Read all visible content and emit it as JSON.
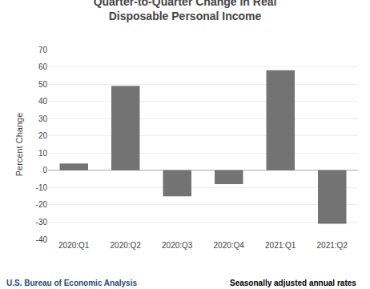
{
  "chart_data": {
    "type": "bar",
    "title": "Quarter-to-Quarter Change in Real\nDisposable Personal Income",
    "y_label": "Percent Change",
    "categories": [
      "2020:Q1",
      "2020:Q2",
      "2020:Q3",
      "2020:Q4",
      "2021:Q1",
      "2021:Q2"
    ],
    "values": [
      4.0,
      49.0,
      -15.0,
      -8.0,
      58.0,
      -31.0
    ],
    "color": "#737373",
    "ylim": [
      -40,
      70
    ],
    "yticks": [
      -40,
      -30,
      -20,
      -10,
      0,
      10,
      20,
      30,
      40,
      50,
      60,
      70
    ],
    "grid": true,
    "annotations": [
      {
        "text": "U.S. Bureau of Economic Analysis",
        "color": "#1f4e79"
      },
      {
        "text": "Seasonally adjusted annual rates",
        "color": "#000000"
      }
    ]
  }
}
